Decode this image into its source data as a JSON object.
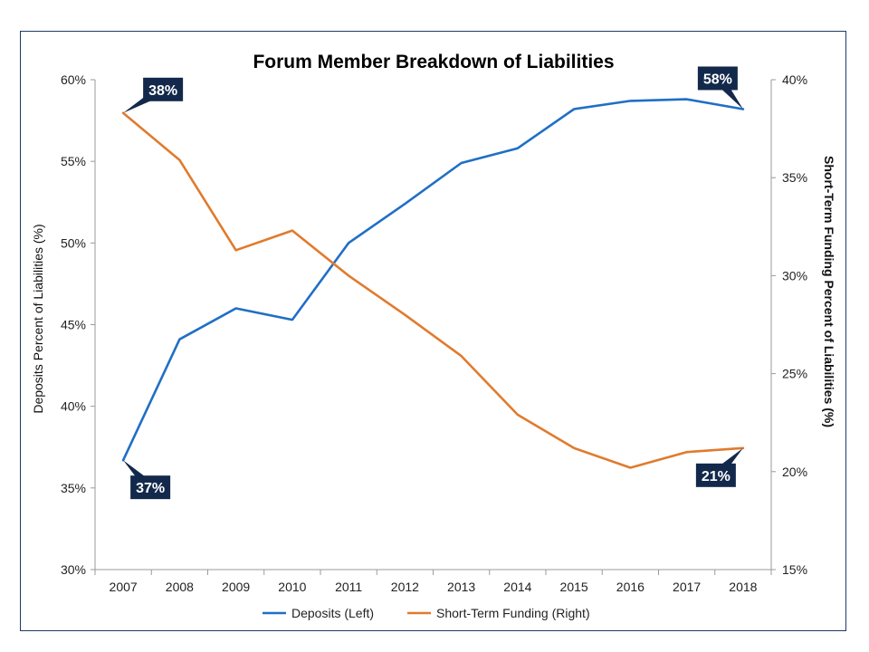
{
  "chart_data": {
    "type": "line",
    "title": "Forum Member Breakdown of Liabilities",
    "x": [
      "2007",
      "2008",
      "2009",
      "2010",
      "2011",
      "2012",
      "2013",
      "2014",
      "2015",
      "2016",
      "2017",
      "2018"
    ],
    "y_left": {
      "label": "Deposits Percent of Liabilities (%)",
      "lim": [
        30,
        60
      ],
      "ticks": [
        "30%",
        "35%",
        "40%",
        "45%",
        "50%",
        "55%",
        "60%"
      ]
    },
    "y_right": {
      "label": "Short-Term Funding Percent of Liabilities (%)",
      "lim": [
        15,
        40
      ],
      "ticks": [
        "15%",
        "20%",
        "25%",
        "30%",
        "35%",
        "40%"
      ]
    },
    "series": [
      {
        "name": "Deposits (Left)",
        "axis": "left",
        "color": "#1f6fc6",
        "values": [
          36.7,
          44.1,
          46.0,
          45.3,
          50.0,
          52.4,
          54.9,
          55.8,
          58.2,
          58.7,
          58.8,
          58.2
        ]
      },
      {
        "name": "Short-Term Funding (Right)",
        "axis": "right",
        "color": "#e07b2e",
        "values": [
          38.3,
          35.9,
          31.3,
          32.3,
          30.0,
          28.0,
          25.9,
          22.9,
          21.2,
          20.2,
          21.0,
          21.2
        ]
      }
    ],
    "callouts": [
      {
        "text": "38%",
        "series": 1,
        "index": 0
      },
      {
        "text": "37%",
        "series": 0,
        "index": 0
      },
      {
        "text": "58%",
        "series": 0,
        "index": 11
      },
      {
        "text": "21%",
        "series": 1,
        "index": 11
      }
    ],
    "callout_color": "#13294b",
    "legend_position": "bottom",
    "grid": false
  }
}
